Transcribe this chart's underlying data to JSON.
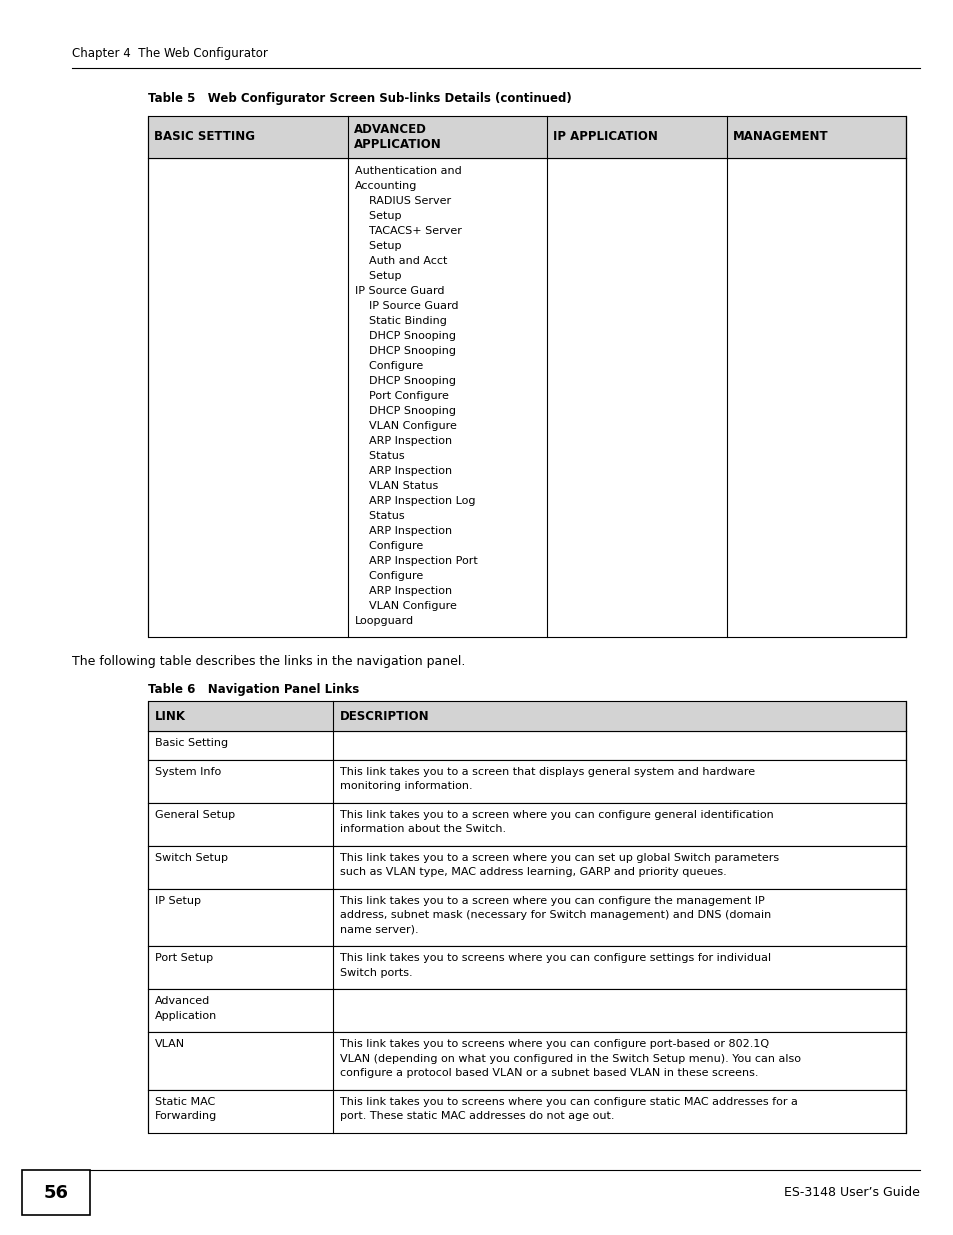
{
  "page_bg": "#ffffff",
  "header_text": "Chapter 4  The Web Configurator",
  "footer_page_num": "56",
  "footer_right": "ES-3148 User’s Guide",
  "table5_title": "Table 5   Web Configurator Screen Sub-links Details (continued)",
  "table5_headers": [
    "BASIC SETTING",
    "ADVANCED\nAPPLICATION",
    "IP APPLICATION",
    "MANAGEMENT"
  ],
  "table5_header_bg": "#d3d3d3",
  "table5_adv_col_content": [
    [
      "Authentication and",
      false
    ],
    [
      "Accounting",
      false
    ],
    [
      "    RADIUS Server",
      false
    ],
    [
      "    Setup",
      false
    ],
    [
      "    TACACS+ Server",
      false
    ],
    [
      "    Setup",
      false
    ],
    [
      "    Auth and Acct",
      false
    ],
    [
      "    Setup",
      false
    ],
    [
      "IP Source Guard",
      false
    ],
    [
      "    IP Source Guard",
      false
    ],
    [
      "    Static Binding",
      false
    ],
    [
      "    DHCP Snooping",
      false
    ],
    [
      "    DHCP Snooping",
      false
    ],
    [
      "    Configure",
      false
    ],
    [
      "    DHCP Snooping",
      false
    ],
    [
      "    Port Configure",
      false
    ],
    [
      "    DHCP Snooping",
      false
    ],
    [
      "    VLAN Configure",
      false
    ],
    [
      "    ARP Inspection",
      false
    ],
    [
      "    Status",
      false
    ],
    [
      "    ARP Inspection",
      false
    ],
    [
      "    VLAN Status",
      false
    ],
    [
      "    ARP Inspection Log",
      false
    ],
    [
      "    Status",
      false
    ],
    [
      "    ARP Inspection",
      false
    ],
    [
      "    Configure",
      false
    ],
    [
      "    ARP Inspection Port",
      false
    ],
    [
      "    Configure",
      false
    ],
    [
      "    ARP Inspection",
      false
    ],
    [
      "    VLAN Configure",
      false
    ],
    [
      "Loopguard",
      false
    ]
  ],
  "between_text": "The following table describes the links in the navigation panel.",
  "table6_title": "Table 6   Navigation Panel Links",
  "table6_headers": [
    "LINK",
    "DESCRIPTION"
  ],
  "table6_header_bg": "#d3d3d3",
  "table6_rows": [
    [
      "Basic Setting",
      ""
    ],
    [
      "System Info",
      "This link takes you to a screen that displays general system and hardware\nmonitoring information."
    ],
    [
      "General Setup",
      "This link takes you to a screen where you can configure general identification\ninformation about the Switch."
    ],
    [
      "Switch Setup",
      "This link takes you to a screen where you can set up global Switch parameters\nsuch as VLAN type, MAC address learning, GARP and priority queues."
    ],
    [
      "IP Setup",
      "This link takes you to a screen where you can configure the management IP\naddress, subnet mask (necessary for Switch management) and DNS (domain\nname server)."
    ],
    [
      "Port Setup",
      "This link takes you to screens where you can configure settings for individual\nSwitch ports."
    ],
    [
      "Advanced\nApplication",
      ""
    ],
    [
      "VLAN",
      "This link takes you to screens where you can configure port-based or 802.1Q\nVLAN (depending on what you configured in the Switch Setup menu). You can also\nconfigure a protocol based VLAN or a subnet based VLAN in these screens."
    ],
    [
      "Static MAC\nForwarding",
      "This link takes you to screens where you can configure static MAC addresses for a\nport. These static MAC addresses do not age out."
    ]
  ]
}
